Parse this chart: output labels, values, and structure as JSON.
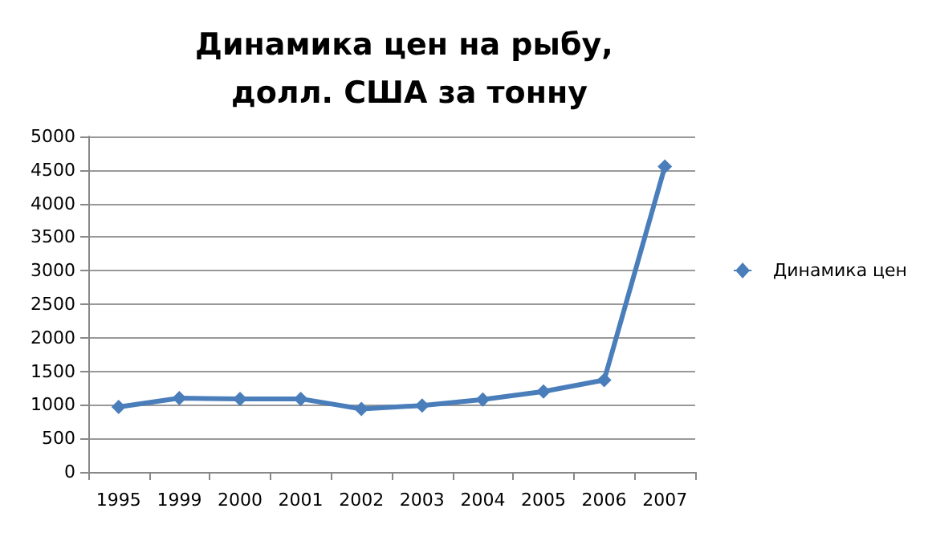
{
  "chart_data": {
    "type": "line",
    "title": "Динамика цен на рыбу, долл. США за тонну",
    "categories": [
      "1995",
      "1999",
      "2000",
      "2001",
      "2002",
      "2003",
      "2004",
      "2005",
      "2006",
      "2007"
    ],
    "series": [
      {
        "name": "Динамика цен",
        "color": "#4a7ebb",
        "values": [
          970,
          1100,
          1090,
          1090,
          940,
          990,
          1080,
          1200,
          1370,
          4550
        ]
      }
    ],
    "ylim": [
      0,
      5000
    ],
    "yticks": [
      0,
      500,
      1000,
      1500,
      2000,
      2500,
      3000,
      3500,
      4000,
      4500,
      5000
    ],
    "grid": "y",
    "legend": "right",
    "marker": "diamond",
    "line_style": "solid"
  }
}
